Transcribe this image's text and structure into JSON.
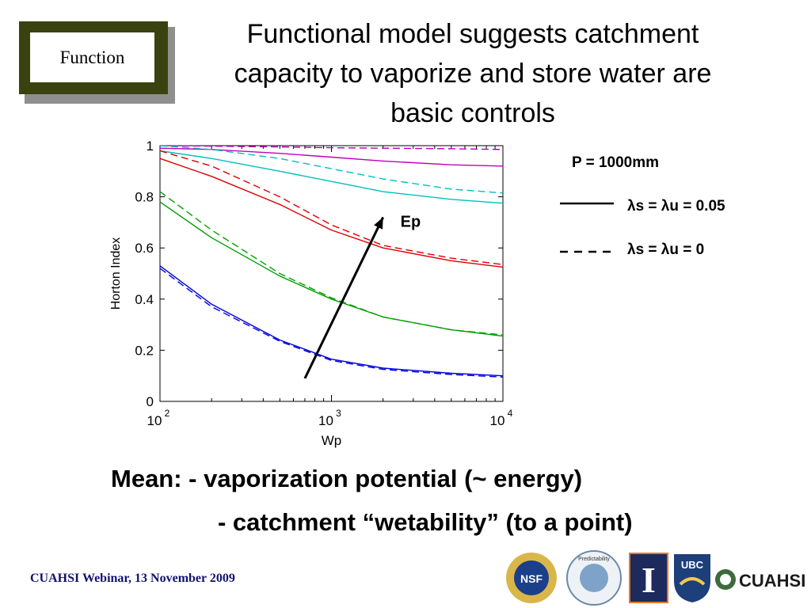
{
  "badge": {
    "label": "Function"
  },
  "title": {
    "lines": [
      "Functional model suggests catchment",
      "capacity to vaporize and store water are",
      "basic controls"
    ]
  },
  "legend": {
    "precip": "P = 1000mm",
    "solid": "λs = λu = 0.05",
    "dashed": "λs = λu = 0"
  },
  "caption": {
    "line1": "Mean:  - vaporization potential (~ energy)",
    "line2": "- catchment “wetability” (to a point)"
  },
  "footer": {
    "text": "CUAHSI Webinar, 13 November 2009"
  },
  "logos": {
    "nsf": "NSF",
    "predictability": "Predictability",
    "illinois": "I",
    "ubc": "UBC",
    "cuahsi": "CUAHSI"
  },
  "chart_data": {
    "type": "line",
    "xlabel": "Wp",
    "ylabel": "Horton Index",
    "xscale": "log",
    "xlim": [
      100,
      10000
    ],
    "ylim": [
      0,
      1
    ],
    "xticks": [
      100,
      1000,
      10000
    ],
    "xtick_labels": [
      [
        "10",
        "2"
      ],
      [
        "10",
        "3"
      ],
      [
        "10",
        "4"
      ]
    ],
    "yticks": [
      0,
      0.2,
      0.4,
      0.6,
      0.8,
      1
    ],
    "ytick_labels": [
      "0",
      "0.2",
      "0.4",
      "0.6",
      "0.8",
      "1"
    ],
    "grid": false,
    "x": [
      100,
      200,
      500,
      1000,
      2000,
      5000,
      10000
    ],
    "series": [
      {
        "color": "#c000c0",
        "dash": false,
        "values": [
          0.99,
          0.985,
          0.97,
          0.955,
          0.94,
          0.925,
          0.92
        ]
      },
      {
        "color": "#c000c0",
        "dash": true,
        "values": [
          1.0,
          0.998,
          0.995,
          0.992,
          0.99,
          0.988,
          0.985
        ]
      },
      {
        "color": "#00c0c0",
        "dash": false,
        "values": [
          0.98,
          0.95,
          0.9,
          0.86,
          0.82,
          0.79,
          0.775
        ]
      },
      {
        "color": "#00c0c0",
        "dash": true,
        "values": [
          1.0,
          0.985,
          0.95,
          0.91,
          0.87,
          0.83,
          0.815
        ]
      },
      {
        "color": "#e00000",
        "dash": false,
        "values": [
          0.95,
          0.88,
          0.77,
          0.67,
          0.6,
          0.55,
          0.525
        ]
      },
      {
        "color": "#e00000",
        "dash": true,
        "values": [
          0.98,
          0.92,
          0.8,
          0.69,
          0.61,
          0.56,
          0.535
        ]
      },
      {
        "color": "#00a000",
        "dash": false,
        "values": [
          0.78,
          0.64,
          0.49,
          0.4,
          0.33,
          0.28,
          0.255
        ]
      },
      {
        "color": "#00a000",
        "dash": true,
        "values": [
          0.82,
          0.67,
          0.5,
          0.405,
          0.33,
          0.28,
          0.26
        ]
      },
      {
        "color": "#0000e0",
        "dash": false,
        "values": [
          0.53,
          0.38,
          0.24,
          0.165,
          0.13,
          0.11,
          0.1
        ]
      },
      {
        "color": "#0000e0",
        "dash": true,
        "values": [
          0.52,
          0.37,
          0.235,
          0.16,
          0.125,
          0.105,
          0.095
        ]
      }
    ],
    "annotation": {
      "label": "Ep",
      "from": [
        700,
        0.09
      ],
      "to": [
        2000,
        0.72
      ]
    }
  }
}
